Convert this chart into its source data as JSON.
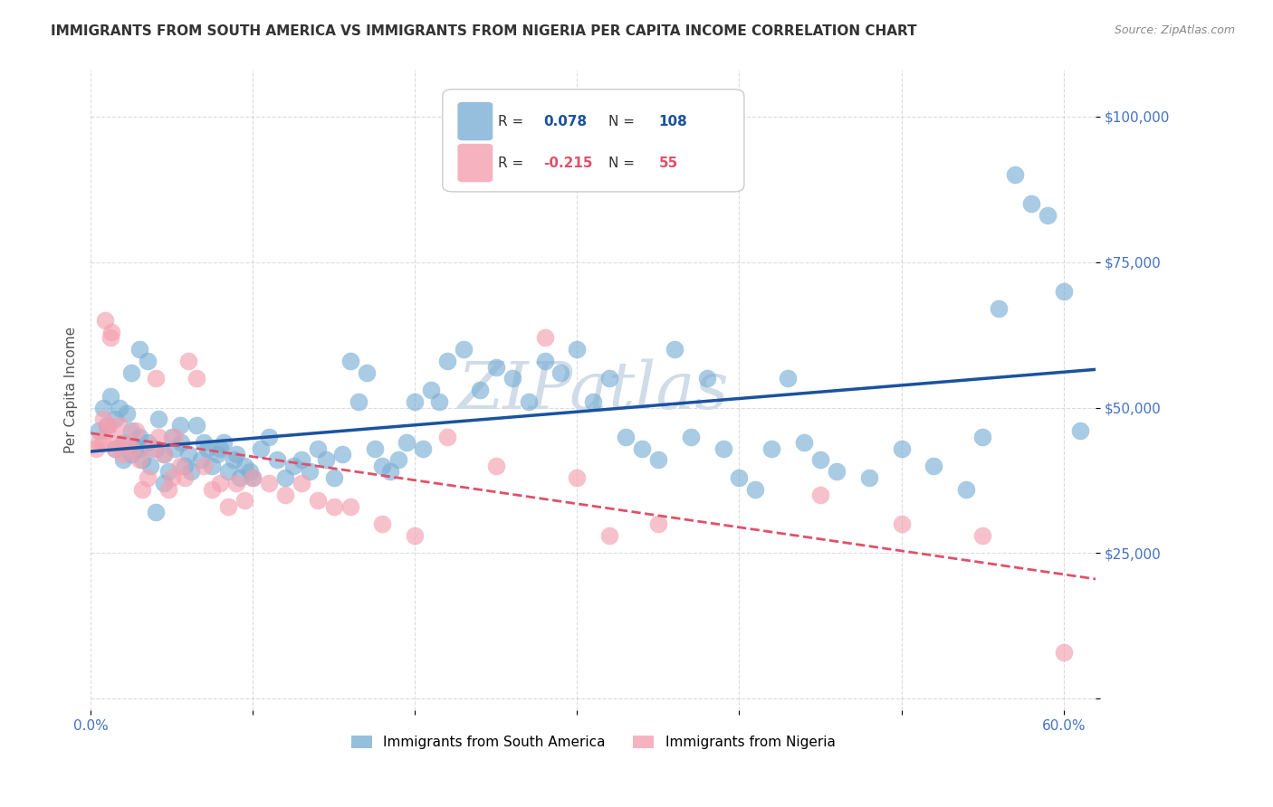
{
  "title": "IMMIGRANTS FROM SOUTH AMERICA VS IMMIGRANTS FROM NIGERIA PER CAPITA INCOME CORRELATION CHART",
  "source": "Source: ZipAtlas.com",
  "ylabel": "Per Capita Income",
  "y_ticks": [
    0,
    25000,
    50000,
    75000,
    100000
  ],
  "y_tick_labels": [
    "",
    "$25,000",
    "$50,000",
    "$75,000",
    "$100,000"
  ],
  "x_ticks": [
    0.0,
    0.1,
    0.2,
    0.3,
    0.4,
    0.5,
    0.6
  ],
  "x_tick_labels": [
    "0.0%",
    "",
    "",
    "",
    "",
    "",
    "60.0%"
  ],
  "xlim": [
    0.0,
    0.62
  ],
  "ylim": [
    -2000,
    108000
  ],
  "blue_R": "0.078",
  "blue_N": "108",
  "pink_R": "-0.215",
  "pink_N": "55",
  "blue_color": "#7bafd4",
  "blue_line_color": "#1a52a0",
  "pink_color": "#f4a0b0",
  "pink_line_color": "#e0506a",
  "watermark": "ZIPatlas",
  "watermark_color": "#d0dce8",
  "legend_label_blue": "Immigrants from South America",
  "legend_label_pink": "Immigrants from Nigeria",
  "title_color": "#333333",
  "axis_label_color": "#555555",
  "tick_color": "#4472c4",
  "grid_color": "#cccccc",
  "background_color": "#ffffff",
  "blue_scatter_x": [
    0.005,
    0.01,
    0.012,
    0.015,
    0.018,
    0.02,
    0.022,
    0.025,
    0.025,
    0.028,
    0.03,
    0.03,
    0.032,
    0.035,
    0.037,
    0.04,
    0.042,
    0.045,
    0.048,
    0.05,
    0.052,
    0.055,
    0.056,
    0.058,
    0.06,
    0.062,
    0.065,
    0.068,
    0.07,
    0.072,
    0.075,
    0.078,
    0.08,
    0.082,
    0.085,
    0.088,
    0.09,
    0.092,
    0.095,
    0.098,
    0.1,
    0.105,
    0.11,
    0.115,
    0.12,
    0.125,
    0.13,
    0.135,
    0.14,
    0.145,
    0.15,
    0.155,
    0.16,
    0.165,
    0.17,
    0.175,
    0.18,
    0.185,
    0.19,
    0.195,
    0.2,
    0.205,
    0.21,
    0.215,
    0.22,
    0.23,
    0.24,
    0.25,
    0.26,
    0.27,
    0.28,
    0.29,
    0.3,
    0.31,
    0.32,
    0.33,
    0.34,
    0.35,
    0.36,
    0.37,
    0.38,
    0.39,
    0.4,
    0.41,
    0.42,
    0.43,
    0.44,
    0.45,
    0.46,
    0.48,
    0.5,
    0.52,
    0.54,
    0.55,
    0.56,
    0.57,
    0.58,
    0.59,
    0.6,
    0.61,
    0.008,
    0.015,
    0.02,
    0.025,
    0.03,
    0.035,
    0.04,
    0.045
  ],
  "blue_scatter_y": [
    46000,
    47000,
    52000,
    48000,
    50000,
    44000,
    49000,
    46000,
    42000,
    43000,
    45000,
    43000,
    41000,
    44000,
    40000,
    43000,
    48000,
    42000,
    39000,
    45000,
    43000,
    47000,
    44000,
    40000,
    42000,
    39000,
    47000,
    41000,
    44000,
    43000,
    40000,
    42000,
    43000,
    44000,
    39000,
    41000,
    42000,
    38000,
    40000,
    39000,
    38000,
    43000,
    45000,
    41000,
    38000,
    40000,
    41000,
    39000,
    43000,
    41000,
    38000,
    42000,
    58000,
    51000,
    56000,
    43000,
    40000,
    39000,
    41000,
    44000,
    51000,
    43000,
    53000,
    51000,
    58000,
    60000,
    53000,
    57000,
    55000,
    51000,
    58000,
    56000,
    60000,
    51000,
    55000,
    45000,
    43000,
    41000,
    60000,
    45000,
    55000,
    43000,
    38000,
    36000,
    43000,
    55000,
    44000,
    41000,
    39000,
    38000,
    43000,
    40000,
    36000,
    45000,
    67000,
    90000,
    85000,
    83000,
    70000,
    46000,
    50000,
    43000,
    41000,
    56000,
    60000,
    58000,
    32000,
    37000
  ],
  "pink_scatter_x": [
    0.003,
    0.005,
    0.008,
    0.01,
    0.012,
    0.015,
    0.018,
    0.02,
    0.022,
    0.025,
    0.028,
    0.03,
    0.032,
    0.035,
    0.038,
    0.04,
    0.042,
    0.045,
    0.048,
    0.05,
    0.052,
    0.055,
    0.058,
    0.06,
    0.065,
    0.07,
    0.075,
    0.08,
    0.085,
    0.09,
    0.095,
    0.1,
    0.11,
    0.12,
    0.13,
    0.14,
    0.15,
    0.16,
    0.18,
    0.2,
    0.22,
    0.25,
    0.28,
    0.3,
    0.32,
    0.35,
    0.45,
    0.5,
    0.55,
    0.6,
    0.007,
    0.009,
    0.011,
    0.013,
    0.016
  ],
  "pink_scatter_y": [
    43000,
    44000,
    48000,
    46000,
    62000,
    43000,
    47000,
    42000,
    44000,
    43000,
    46000,
    41000,
    36000,
    38000,
    43000,
    55000,
    45000,
    42000,
    36000,
    38000,
    45000,
    40000,
    38000,
    58000,
    55000,
    40000,
    36000,
    37000,
    33000,
    37000,
    34000,
    38000,
    37000,
    35000,
    37000,
    34000,
    33000,
    33000,
    30000,
    28000,
    45000,
    40000,
    62000,
    38000,
    28000,
    30000,
    35000,
    30000,
    28000,
    8000,
    44000,
    65000,
    47000,
    63000,
    44000
  ]
}
